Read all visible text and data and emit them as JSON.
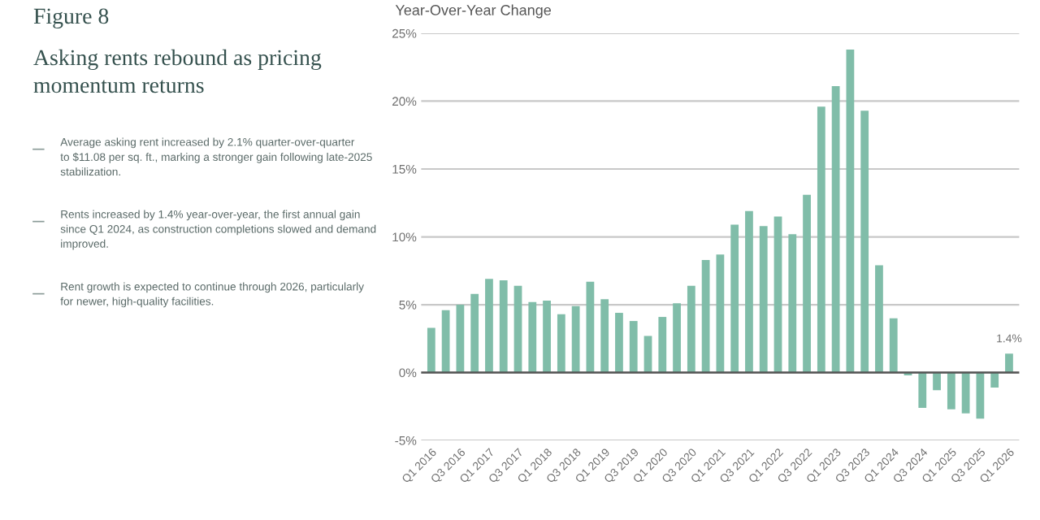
{
  "chart_data": {
    "type": "bar",
    "title": "Figure 8",
    "subtitle": "Asking rents rebound as pricing\nmomentum returns",
    "ylabel": "Year-Over-Year Change",
    "annotations": [
      "Average asking rent increased by 2.1% quarter-over-quarter\nto $11.08 per sq. ft., marking a stronger gain following late-2025\nstabilization.",
      "Rents increased by 1.4% year-over-year, the first annual gain\nsince Q1 2024, as construction completions slowed and demand\nimproved.",
      "Rent growth is expected to continue through 2026, particularly\nfor newer, high-quality facilities."
    ],
    "categories": [
      "Q1 2016",
      null,
      "Q3 2016",
      null,
      "Q1 2017",
      null,
      "Q3 2017",
      null,
      "Q1 2018",
      null,
      "Q3 2018",
      null,
      "Q1 2019",
      null,
      "Q3 2019",
      null,
      "Q1 2020",
      null,
      "Q3 2020",
      null,
      "Q1 2021",
      null,
      "Q3 2021",
      null,
      "Q1 2022",
      null,
      "Q3 2022",
      null,
      "Q1 2023",
      null,
      "Q3 2023",
      null,
      "Q1 2024",
      null,
      "Q3 2024",
      null,
      "Q1 2025",
      null,
      "Q3 2025",
      null,
      "Q1 2026"
    ],
    "values": [
      3.3,
      4.6,
      5.0,
      5.8,
      6.9,
      6.8,
      6.4,
      5.2,
      5.3,
      4.3,
      4.9,
      6.7,
      5.4,
      4.4,
      3.8,
      2.7,
      4.1,
      5.1,
      6.4,
      8.3,
      8.7,
      10.9,
      11.9,
      10.8,
      11.5,
      10.2,
      13.1,
      19.6,
      21.1,
      23.8,
      19.3,
      7.9,
      4.0,
      -0.2,
      -2.6,
      -1.3,
      -2.7,
      -3.0,
      -3.4,
      -1.1,
      1.4
    ],
    "value_labels": [
      null,
      null,
      null,
      null,
      null,
      null,
      null,
      null,
      null,
      null,
      null,
      null,
      null,
      null,
      null,
      null,
      null,
      null,
      null,
      null,
      null,
      null,
      null,
      null,
      null,
      null,
      null,
      null,
      null,
      null,
      null,
      null,
      null,
      null,
      null,
      null,
      null,
      null,
      null,
      null,
      "1.4%"
    ],
    "color": "#80bda9",
    "ylim": [
      -5,
      25
    ],
    "yticks": [
      {
        "value": -5,
        "label": "-5%"
      },
      {
        "value": 0,
        "label": "0%"
      },
      {
        "value": 5,
        "label": "5%"
      },
      {
        "value": 10,
        "label": "10%"
      },
      {
        "value": 15,
        "label": "15%"
      },
      {
        "value": 20,
        "label": "20%"
      },
      {
        "value": 25,
        "label": "25%"
      }
    ],
    "grid": "y",
    "legend": false
  }
}
